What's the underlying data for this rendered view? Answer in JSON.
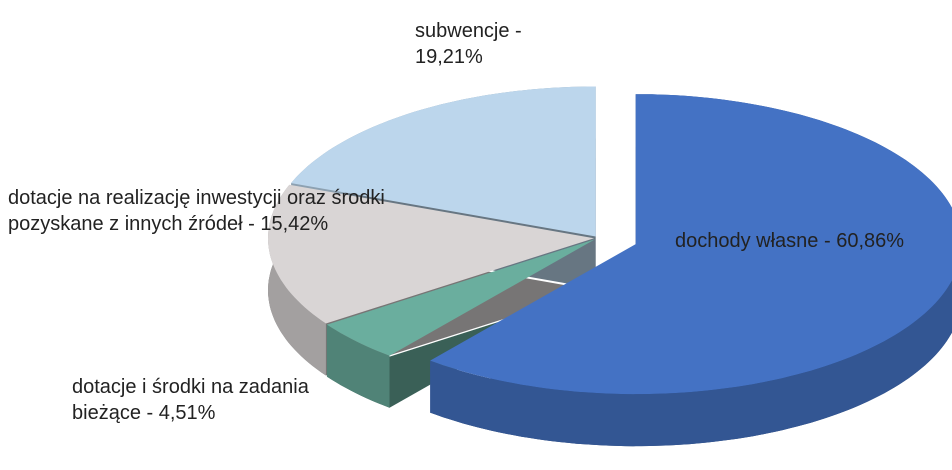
{
  "chart_data": {
    "type": "pie",
    "categories": [
      "dochody własne -",
      "dotacje i środki na zadania bieżące -",
      "dotacje na realizację inwestycji oraz środki pozyskane z innych źródeł -",
      "subwencje -"
    ],
    "values": [
      60.86,
      4.51,
      15.42,
      19.21
    ],
    "value_labels": [
      "60,86%",
      "4,51%",
      "15,42%",
      "19,21%"
    ],
    "colors": [
      "#4472c4",
      "#6aae9e",
      "#d9d5d5",
      "#bcd6ec"
    ],
    "exploded": [
      0
    ]
  }
}
